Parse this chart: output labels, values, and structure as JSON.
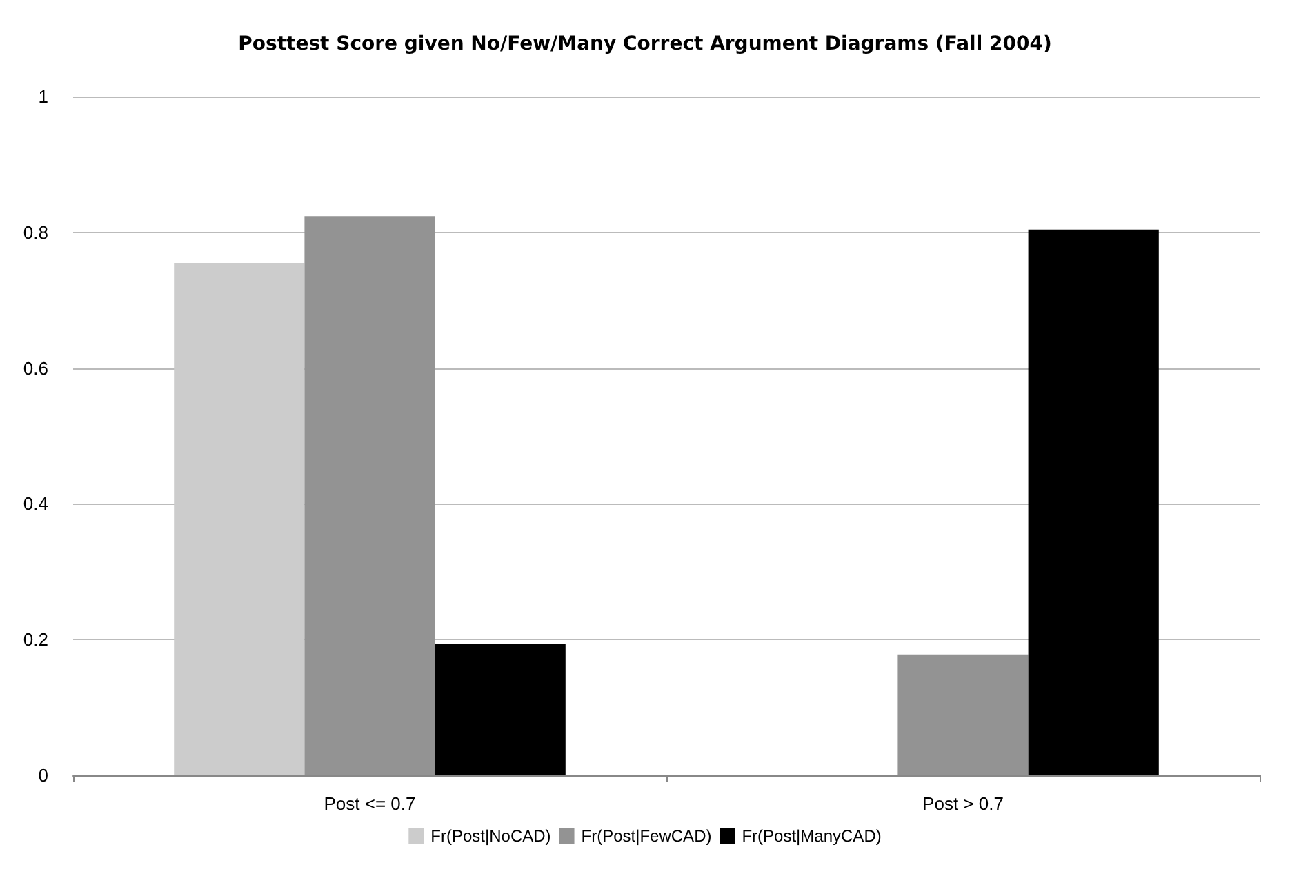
{
  "chart_data": {
    "type": "bar",
    "title": "Posttest Score given No/Few/Many Correct Argument Diagrams (Fall 2004)",
    "categories": [
      "Post <= 0.7",
      "Post > 0.7"
    ],
    "series": [
      {
        "name": "Fr(Post|NoCAD)",
        "color": "#cccccc",
        "values": [
          0.754,
          0
        ]
      },
      {
        "name": "Fr(Post|FewCAD)",
        "color": "#939393",
        "values": [
          0.824,
          0.178
        ]
      },
      {
        "name": "Fr(Post|ManyCAD)",
        "color": "#000000",
        "values": [
          0.194,
          0.804
        ]
      }
    ],
    "ylim": [
      0,
      1
    ],
    "yticks": [
      0,
      0.2,
      0.4,
      0.6,
      0.8,
      1
    ],
    "grid": "y",
    "legend": "bottom"
  }
}
